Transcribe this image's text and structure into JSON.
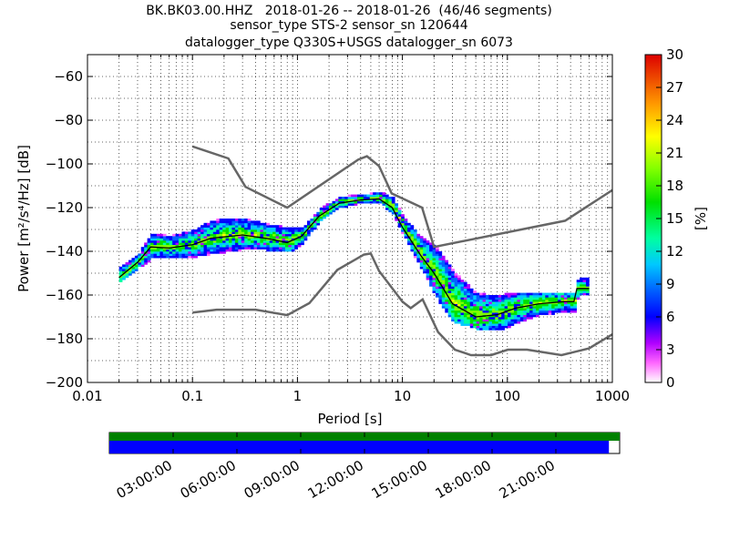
{
  "title": {
    "line1": "BK.BK03.00.HHZ   2018-01-26 -- 2018-01-26  (46/46 segments)",
    "line2": "sensor_type STS-2 sensor_sn 120644",
    "line3": "datalogger_type Q330S+USGS datalogger_sn 6073"
  },
  "chart_data": [
    {
      "type": "heatmap",
      "title": "BK.BK03.00.HHZ   2018-01-26 -- 2018-01-26  (46/46 segments)",
      "xlabel": "Period [s]",
      "ylabel": "Power [m²/s⁴/Hz] [dB]",
      "xscale": "log",
      "xlim": [
        0.01,
        1000
      ],
      "ylim": [
        -200,
        -50
      ],
      "x_ticks": [
        0.01,
        0.1,
        1,
        10,
        100,
        1000
      ],
      "x_tick_labels": [
        "0.01",
        "0.1",
        "1",
        "10",
        "100",
        "1000"
      ],
      "y_ticks": [
        -200,
        -180,
        -160,
        -140,
        -120,
        -100,
        -80,
        -60
      ],
      "y_tick_labels": [
        "−200",
        "−180",
        "−160",
        "−140",
        "−120",
        "−100",
        "−80",
        "−60"
      ],
      "grid": true,
      "colorbar": {
        "label": "[%]",
        "range": [
          0,
          30
        ],
        "ticks": [
          0,
          3,
          6,
          9,
          12,
          15,
          18,
          21,
          24,
          27,
          30
        ],
        "tick_labels": [
          "0",
          "3",
          "6",
          "9",
          "12",
          "15",
          "18",
          "21",
          "24",
          "27",
          "30"
        ]
      },
      "noise_models": {
        "high": [
          [
            0.1,
            -92
          ],
          [
            0.22,
            -97.5
          ],
          [
            0.32,
            -110.5
          ],
          [
            0.8,
            -120
          ],
          [
            3.8,
            -98
          ],
          [
            4.6,
            -96.5
          ],
          [
            6,
            -101
          ],
          [
            7.9,
            -113.5
          ],
          [
            15.4,
            -120
          ],
          [
            20,
            -138
          ],
          [
            354.8,
            -126
          ],
          [
            1000,
            -112
          ]
        ],
        "low": [
          [
            0.1,
            -168
          ],
          [
            0.17,
            -166.7
          ],
          [
            0.4,
            -166.7
          ],
          [
            0.8,
            -169.2
          ],
          [
            1.3,
            -163.7
          ],
          [
            2.4,
            -148.5
          ],
          [
            4.3,
            -141.5
          ],
          [
            5,
            -141
          ],
          [
            6,
            -149
          ],
          [
            10,
            -163
          ],
          [
            12,
            -166
          ],
          [
            15.6,
            -162
          ],
          [
            21.9,
            -177
          ],
          [
            31.6,
            -185
          ],
          [
            45,
            -187.5
          ],
          [
            70,
            -187.5
          ],
          [
            101,
            -185
          ],
          [
            154,
            -185
          ],
          [
            328,
            -187.5
          ],
          [
            600,
            -184.4
          ],
          [
            1000,
            -178
          ]
        ]
      },
      "median": [
        [
          0.02,
          -152
        ],
        [
          0.03,
          -145
        ],
        [
          0.04,
          -138
        ],
        [
          0.06,
          -138.5
        ],
        [
          0.1,
          -137
        ],
        [
          0.15,
          -134
        ],
        [
          0.3,
          -132.5
        ],
        [
          0.5,
          -134
        ],
        [
          0.8,
          -136
        ],
        [
          1.1,
          -133
        ],
        [
          1.6,
          -124
        ],
        [
          2.5,
          -118
        ],
        [
          4,
          -116.5
        ],
        [
          6,
          -116
        ],
        [
          8,
          -120
        ],
        [
          10,
          -129
        ],
        [
          15,
          -142
        ],
        [
          20,
          -150
        ],
        [
          30,
          -164
        ],
        [
          50,
          -170
        ],
        [
          80,
          -169
        ],
        [
          120,
          -166
        ],
        [
          200,
          -164
        ],
        [
          350,
          -163
        ],
        [
          430,
          -163
        ],
        [
          460,
          -157
        ],
        [
          600,
          -157
        ]
      ],
      "density_spread": [
        {
          "x": 0.02,
          "lo": -154,
          "hi": -146
        },
        {
          "x": 0.03,
          "lo": -147,
          "hi": -140
        },
        {
          "x": 0.04,
          "lo": -144,
          "hi": -133
        },
        {
          "x": 0.06,
          "lo": -143,
          "hi": -133
        },
        {
          "x": 0.1,
          "lo": -143,
          "hi": -131
        },
        {
          "x": 0.15,
          "lo": -142,
          "hi": -127
        },
        {
          "x": 0.3,
          "lo": -139,
          "hi": -125
        },
        {
          "x": 0.5,
          "lo": -139,
          "hi": -127
        },
        {
          "x": 0.8,
          "lo": -140,
          "hi": -128
        },
        {
          "x": 1.1,
          "lo": -137,
          "hi": -130
        },
        {
          "x": 1.6,
          "lo": -127,
          "hi": -121
        },
        {
          "x": 2.5,
          "lo": -121,
          "hi": -116
        },
        {
          "x": 4,
          "lo": -119,
          "hi": -115
        },
        {
          "x": 6,
          "lo": -119,
          "hi": -114
        },
        {
          "x": 8,
          "lo": -125,
          "hi": -117
        },
        {
          "x": 10,
          "lo": -133,
          "hi": -125
        },
        {
          "x": 15,
          "lo": -148,
          "hi": -133
        },
        {
          "x": 20,
          "lo": -160,
          "hi": -137
        },
        {
          "x": 30,
          "lo": -172,
          "hi": -145
        },
        {
          "x": 50,
          "lo": -175,
          "hi": -155
        },
        {
          "x": 80,
          "lo": -176,
          "hi": -160
        },
        {
          "x": 120,
          "lo": -175,
          "hi": -161
        },
        {
          "x": 200,
          "lo": -171,
          "hi": -160
        },
        {
          "x": 350,
          "lo": -170,
          "hi": -160
        },
        {
          "x": 430,
          "lo": -170,
          "hi": -160
        },
        {
          "x": 460,
          "lo": -160,
          "hi": -152
        },
        {
          "x": 600,
          "lo": -160,
          "hi": -152
        }
      ]
    },
    {
      "type": "bar",
      "description": "data coverage timeline",
      "time_ticks": [
        "03:00:00",
        "06:00:00",
        "09:00:00",
        "12:00:00",
        "15:00:00",
        "18:00:00",
        "21:00:00"
      ],
      "coverage_fraction": 0.979,
      "colors": {
        "segments": "#008000",
        "data": "#0000ff"
      }
    }
  ]
}
